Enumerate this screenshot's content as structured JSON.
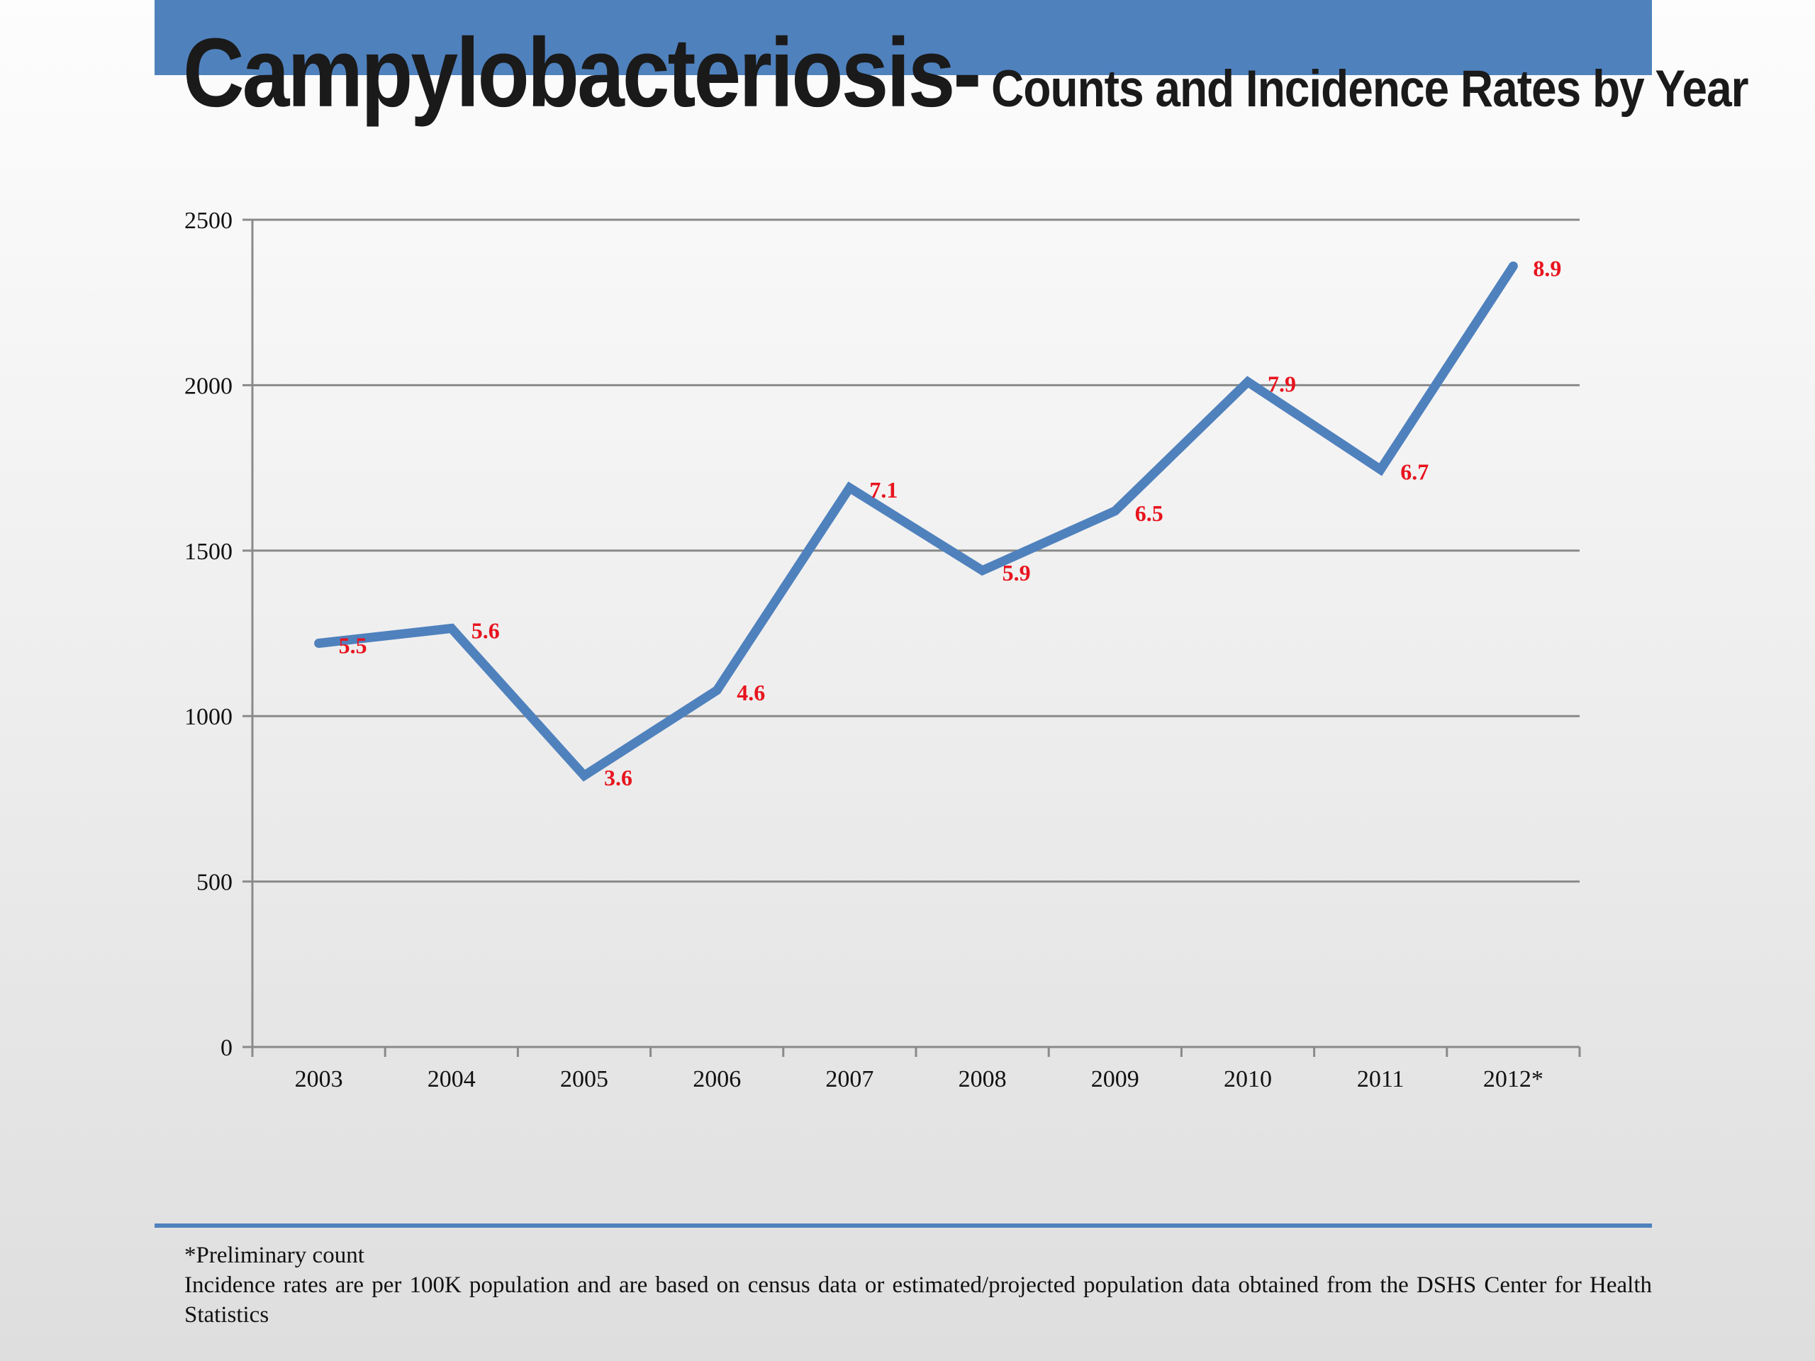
{
  "slide": {
    "title_main": "Campylobacteriosis-",
    "title_sub": " Counts and Incidence Rates by Year",
    "accent_color": "#4f81bd",
    "label_color": "#e8141e"
  },
  "chart_data": {
    "type": "line",
    "categories": [
      "2003",
      "2004",
      "2005",
      "2006",
      "2007",
      "2008",
      "2009",
      "2010",
      "2011",
      "2012*"
    ],
    "series": [
      {
        "values": [
          1220,
          1265,
          820,
          1078,
          1690,
          1440,
          1620,
          2010,
          1745,
          2360
        ],
        "data_labels": [
          "5.5",
          "5.6",
          "3.6",
          "4.6",
          "7.1",
          "5.9",
          "6.5",
          "7.9",
          "6.7",
          "8.9"
        ]
      }
    ],
    "y_ticks": [
      "0",
      "500",
      "1000",
      "1500",
      "2000",
      "2500"
    ],
    "ylim": [
      0,
      2500
    ],
    "grid": true,
    "legend": "none"
  },
  "footnotes": {
    "line1": "*Preliminary count",
    "line2": "Incidence rates are per 100K population and are based on census data or estimated/projected population data obtained from the DSHS Center for Health Statistics"
  }
}
